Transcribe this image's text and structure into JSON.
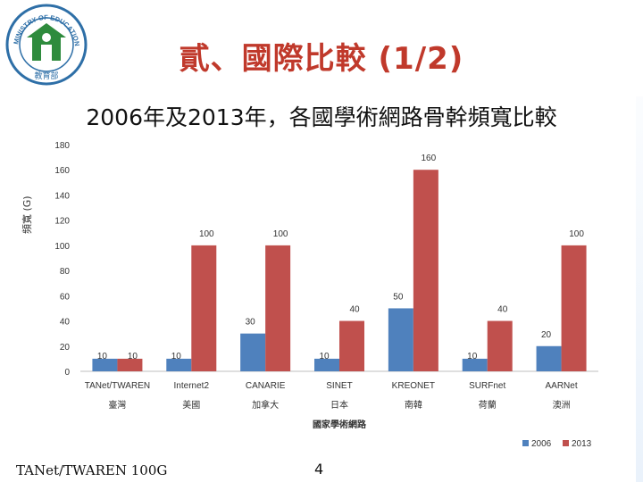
{
  "slide": {
    "title": "貳、國際比較 (1/2)",
    "subtitle": "2006年及2013年，各國學術網路骨幹頻寬比較",
    "logo_text": "MINISTRY OF EDUCATION",
    "footer_left": "TANet/TWAREN 100G",
    "page_number": "4"
  },
  "colors": {
    "title": "#c0392b",
    "s2006": "#4f81bd",
    "s2013": "#c0504d"
  },
  "chart_data": {
    "type": "bar",
    "title": "2006年及2013年，各國學術網路骨幹頻寬比較",
    "categories": [
      "TANet/TWAREN",
      "Internet2",
      "CANARIE",
      "SINET",
      "KREONET",
      "SURFnet",
      "AARNet"
    ],
    "categories_zh": [
      "臺灣",
      "美國",
      "加拿大",
      "日本",
      "南韓",
      "荷蘭",
      "澳洲"
    ],
    "series": [
      {
        "name": "2006",
        "values": [
          10,
          10,
          30,
          10,
          50,
          10,
          20
        ]
      },
      {
        "name": "2013",
        "values": [
          10,
          100,
          100,
          40,
          160,
          40,
          100
        ]
      }
    ],
    "xlabel": "國家學術網路",
    "ylabel": "頻寬 (G)",
    "ylim": [
      0,
      180
    ],
    "yticks": [
      0,
      20,
      40,
      60,
      80,
      100,
      120,
      140,
      160,
      180
    ],
    "legend_position": "bottom-right",
    "grid": false
  }
}
